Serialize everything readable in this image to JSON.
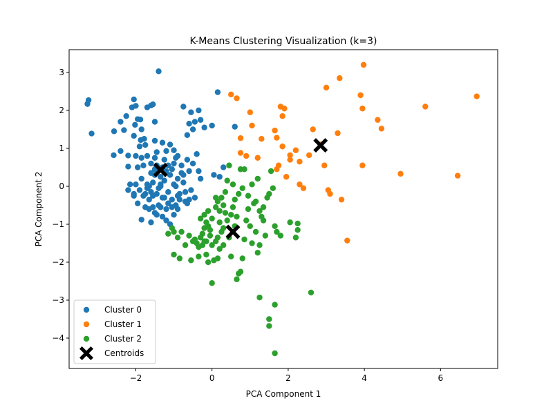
{
  "chart_data": {
    "type": "scatter",
    "title": "K-Means Clustering Visualization (k=3)",
    "xlabel": "PCA Component 1",
    "ylabel": "PCA Component 2",
    "xlim": [
      -3.75,
      7.5
    ],
    "ylim": [
      -4.8,
      3.6
    ],
    "xticks": [
      -2,
      0,
      2,
      4,
      6
    ],
    "yticks": [
      -4,
      -3,
      -2,
      -1,
      0,
      1,
      2,
      3
    ],
    "grid": false,
    "legend_position": "lower-left",
    "series": [
      {
        "name": "Cluster 0",
        "color": "#1f77b4",
        "marker": "circle",
        "points": [
          [
            -3.27,
            2.17
          ],
          [
            -3.24,
            2.27
          ],
          [
            -3.16,
            1.39
          ],
          [
            -2.57,
            1.45
          ],
          [
            -2.58,
            0.82
          ],
          [
            -2.4,
            0.93
          ],
          [
            -2.4,
            1.7
          ],
          [
            -2.31,
            1.48
          ],
          [
            -2.25,
            1.85
          ],
          [
            -2.2,
            0.81
          ],
          [
            -2.2,
            0.52
          ],
          [
            -2.1,
            2.08
          ],
          [
            -2.05,
            2.29
          ],
          [
            -2.0,
            2.12
          ],
          [
            -2.02,
            1.62
          ],
          [
            -2.05,
            1.33
          ],
          [
            -1.95,
            1.77
          ],
          [
            -1.88,
            1.76
          ],
          [
            -1.85,
            1.5
          ],
          [
            -1.87,
            1.22
          ],
          [
            -1.9,
            1.05
          ],
          [
            -1.78,
            1.25
          ],
          [
            -1.75,
            1.09
          ],
          [
            -1.7,
            2.08
          ],
          [
            -1.6,
            2.13
          ],
          [
            -1.55,
            2.16
          ],
          [
            -1.5,
            1.7
          ],
          [
            -1.95,
            0.5
          ],
          [
            -2.0,
            0.8
          ],
          [
            -1.85,
            0.75
          ],
          [
            -1.8,
            0.55
          ],
          [
            -1.7,
            0.8
          ],
          [
            -1.6,
            0.6
          ],
          [
            -1.5,
            0.75
          ],
          [
            -1.45,
            0.9
          ],
          [
            -1.5,
            1.2
          ],
          [
            -1.3,
            1.15
          ],
          [
            -1.2,
            0.93
          ],
          [
            -1.1,
            1.1
          ],
          [
            -1.0,
            0.95
          ],
          [
            -0.9,
            0.8
          ],
          [
            -2.15,
            0.05
          ],
          [
            -2.2,
            -0.1
          ],
          [
            -2.05,
            -0.25
          ],
          [
            -2.0,
            0.05
          ],
          [
            -1.9,
            -0.1
          ],
          [
            -1.8,
            -0.25
          ],
          [
            -1.85,
            0.2
          ],
          [
            -1.7,
            0.05
          ],
          [
            -1.65,
            -0.35
          ],
          [
            -1.6,
            -0.15
          ],
          [
            -1.55,
            0.1
          ],
          [
            -1.5,
            0.3
          ],
          [
            -1.45,
            -0.2
          ],
          [
            -1.4,
            -0.05
          ],
          [
            -1.35,
            -0.55
          ],
          [
            -1.3,
            -0.3
          ],
          [
            -1.25,
            0.15
          ],
          [
            -1.2,
            -0.6
          ],
          [
            -1.15,
            -0.15
          ],
          [
            -1.1,
            0.3
          ],
          [
            -1.05,
            -0.35
          ],
          [
            -1.0,
            0.05
          ],
          [
            -0.95,
            -0.5
          ],
          [
            -0.9,
            0.2
          ],
          [
            -0.85,
            -0.2
          ],
          [
            -0.8,
            0.55
          ],
          [
            -0.75,
            0.3
          ],
          [
            -0.7,
            -0.4
          ],
          [
            -0.65,
            0.7
          ],
          [
            -0.6,
            0.4
          ],
          [
            -0.55,
            -0.1
          ],
          [
            -0.5,
            0.6
          ],
          [
            -0.45,
            -0.3
          ],
          [
            -0.4,
            0.85
          ],
          [
            -0.35,
            0.4
          ],
          [
            -0.3,
            0.2
          ],
          [
            -1.85,
            -0.88
          ],
          [
            -1.75,
            -0.55
          ],
          [
            -1.6,
            -0.95
          ],
          [
            -1.5,
            -0.7
          ],
          [
            -1.4,
            -0.5
          ],
          [
            -1.3,
            -0.8
          ],
          [
            -1.2,
            -0.9
          ],
          [
            -1.1,
            -1.0
          ],
          [
            -1.0,
            -0.75
          ],
          [
            -0.9,
            -0.6
          ],
          [
            -1.4,
            3.03
          ],
          [
            -0.75,
            2.1
          ],
          [
            -0.6,
            1.65
          ],
          [
            -0.55,
            1.95
          ],
          [
            -0.45,
            1.7
          ],
          [
            -0.35,
            2.0
          ],
          [
            -0.3,
            1.75
          ],
          [
            -0.2,
            1.55
          ],
          [
            -0.65,
            1.35
          ],
          [
            -0.5,
            1.5
          ],
          [
            0.15,
            2.48
          ],
          [
            0.0,
            1.6
          ],
          [
            0.05,
            0.3
          ],
          [
            0.2,
            0.25
          ],
          [
            0.3,
            0.5
          ],
          [
            0.6,
            1.57
          ],
          [
            -2.05,
            -0.2
          ],
          [
            -1.95,
            -0.45
          ],
          [
            -1.75,
            -0.2
          ],
          [
            -1.65,
            0.0
          ],
          [
            -1.55,
            -0.55
          ],
          [
            -1.45,
            0.55
          ],
          [
            -1.35,
            0.25
          ],
          [
            -1.25,
            0.7
          ],
          [
            -1.15,
            0.55
          ],
          [
            -1.05,
            0.45
          ],
          [
            -0.95,
            0.0
          ],
          [
            -0.85,
            -0.35
          ],
          [
            -0.75,
            0.1
          ],
          [
            -0.7,
            -0.15
          ],
          [
            -0.65,
            -0.45
          ],
          [
            -0.95,
            0.75
          ],
          [
            -1.15,
            -0.45
          ],
          [
            -1.35,
            0.0
          ],
          [
            -1.55,
            -0.25
          ],
          [
            -1.7,
            -0.05
          ],
          [
            -1.6,
            0.35
          ],
          [
            -1.5,
            0.45
          ],
          [
            -1.3,
            0.5
          ],
          [
            -1.2,
            0.4
          ],
          [
            -1.0,
            0.6
          ],
          [
            -0.8,
            0.35
          ],
          [
            -1.05,
            -0.55
          ],
          [
            -1.25,
            -0.3
          ],
          [
            -1.65,
            -0.6
          ],
          [
            -1.45,
            -0.75
          ],
          [
            -1.35,
            0.05
          ],
          [
            -0.9,
            -0.25
          ],
          [
            -0.6,
            -0.35
          ]
        ]
      },
      {
        "name": "Cluster 1",
        "color": "#ff7f0e",
        "marker": "circle",
        "points": [
          [
            0.5,
            2.42
          ],
          [
            0.65,
            2.32
          ],
          [
            0.75,
            1.27
          ],
          [
            0.75,
            0.88
          ],
          [
            0.9,
            0.8
          ],
          [
            1.0,
            1.95
          ],
          [
            1.05,
            1.6
          ],
          [
            1.2,
            0.75
          ],
          [
            1.3,
            1.25
          ],
          [
            1.65,
            1.47
          ],
          [
            1.7,
            1.28
          ],
          [
            1.7,
            0.45
          ],
          [
            1.75,
            0.55
          ],
          [
            1.8,
            2.1
          ],
          [
            1.85,
            1.85
          ],
          [
            1.9,
            2.05
          ],
          [
            1.85,
            1.05
          ],
          [
            1.95,
            0.25
          ],
          [
            2.05,
            0.82
          ],
          [
            2.05,
            0.7
          ],
          [
            2.2,
            0.95
          ],
          [
            2.3,
            0.65
          ],
          [
            2.3,
            0.05
          ],
          [
            2.4,
            -0.05
          ],
          [
            2.55,
            0.82
          ],
          [
            2.65,
            1.5
          ],
          [
            2.85,
            1.1
          ],
          [
            2.95,
            0.55
          ],
          [
            3.0,
            2.6
          ],
          [
            3.05,
            -0.1
          ],
          [
            3.1,
            -0.2
          ],
          [
            3.3,
            1.4
          ],
          [
            3.35,
            2.85
          ],
          [
            3.4,
            -0.35
          ],
          [
            3.55,
            -1.43
          ],
          [
            3.9,
            2.4
          ],
          [
            3.95,
            2.05
          ],
          [
            3.95,
            0.55
          ],
          [
            3.98,
            3.2
          ],
          [
            4.35,
            1.75
          ],
          [
            4.45,
            1.52
          ],
          [
            4.95,
            0.33
          ],
          [
            5.6,
            2.1
          ],
          [
            6.45,
            0.28
          ],
          [
            6.95,
            2.37
          ]
        ]
      },
      {
        "name": "Cluster 2",
        "color": "#2ca02c",
        "marker": "circle",
        "points": [
          [
            -1.05,
            -1.1
          ],
          [
            -1.0,
            -1.2
          ],
          [
            -1.15,
            -1.25
          ],
          [
            -0.9,
            -1.35
          ],
          [
            -0.8,
            -1.2
          ],
          [
            -0.7,
            -1.55
          ],
          [
            -0.6,
            -1.3
          ],
          [
            -0.5,
            -1.45
          ],
          [
            -0.4,
            -1.5
          ],
          [
            -0.35,
            -1.6
          ],
          [
            -0.3,
            -1.35
          ],
          [
            -0.25,
            -1.25
          ],
          [
            -0.2,
            -1.1
          ],
          [
            -0.15,
            -0.95
          ],
          [
            -0.1,
            -1.05
          ],
          [
            -0.05,
            -1.3
          ],
          [
            0.0,
            -1.55
          ],
          [
            0.1,
            -1.45
          ],
          [
            0.15,
            -1.35
          ],
          [
            0.2,
            -1.65
          ],
          [
            0.25,
            -1.2
          ],
          [
            -0.3,
            -0.85
          ],
          [
            -0.2,
            -0.75
          ],
          [
            -0.1,
            -0.65
          ],
          [
            0.0,
            -0.85
          ],
          [
            0.1,
            -0.55
          ],
          [
            0.15,
            -0.4
          ],
          [
            0.2,
            -0.65
          ],
          [
            0.25,
            -0.3
          ],
          [
            0.3,
            -0.5
          ],
          [
            0.35,
            -0.15
          ],
          [
            0.4,
            0.15
          ],
          [
            0.45,
            0.55
          ],
          [
            0.5,
            -0.75
          ],
          [
            0.55,
            -0.55
          ],
          [
            0.6,
            -0.35
          ],
          [
            0.65,
            -0.8
          ],
          [
            0.7,
            -0.2
          ],
          [
            0.75,
            0.45
          ],
          [
            0.8,
            -0.05
          ],
          [
            0.85,
            0.45
          ],
          [
            0.9,
            -0.9
          ],
          [
            0.95,
            -0.25
          ],
          [
            1.0,
            -1.05
          ],
          [
            1.05,
            0.05
          ],
          [
            1.1,
            -0.45
          ],
          [
            1.15,
            -1.2
          ],
          [
            1.2,
            0.2
          ],
          [
            1.25,
            -0.65
          ],
          [
            1.3,
            -0.8
          ],
          [
            1.35,
            -0.55
          ],
          [
            1.4,
            -1.3
          ],
          [
            1.45,
            -0.3
          ],
          [
            1.5,
            -0.2
          ],
          [
            1.55,
            0.4
          ],
          [
            1.6,
            -0.05
          ],
          [
            1.65,
            -1.05
          ],
          [
            1.7,
            -1.2
          ],
          [
            1.8,
            -1.3
          ],
          [
            2.05,
            -0.95
          ],
          [
            2.2,
            -1.35
          ],
          [
            2.25,
            -1.15
          ],
          [
            2.25,
            -0.98
          ],
          [
            -1.0,
            -1.8
          ],
          [
            -0.85,
            -1.9
          ],
          [
            -0.55,
            -1.95
          ],
          [
            -0.35,
            -1.85
          ],
          [
            -0.15,
            -1.8
          ],
          [
            -0.1,
            -2.0
          ],
          [
            0.05,
            -1.95
          ],
          [
            0.15,
            -1.9
          ],
          [
            0.5,
            -1.85
          ],
          [
            0.65,
            -2.45
          ],
          [
            0.7,
            -2.3
          ],
          [
            0.75,
            -2.25
          ],
          [
            0.8,
            -1.9
          ],
          [
            1.2,
            -1.75
          ],
          [
            1.25,
            -1.55
          ],
          [
            0.0,
            -2.55
          ],
          [
            1.25,
            -2.93
          ],
          [
            1.5,
            -3.5
          ],
          [
            1.5,
            -3.68
          ],
          [
            1.65,
            -3.12
          ],
          [
            1.65,
            -4.4
          ],
          [
            2.6,
            -2.8
          ],
          [
            -0.45,
            -1.4
          ],
          [
            -0.25,
            -1.55
          ],
          [
            -0.15,
            -1.45
          ],
          [
            0.3,
            -1.1
          ],
          [
            0.4,
            -0.9
          ],
          [
            0.45,
            -1.35
          ],
          [
            0.35,
            -0.7
          ],
          [
            0.2,
            -0.95
          ],
          [
            -0.05,
            -1.15
          ],
          [
            1.05,
            -1.5
          ],
          [
            0.85,
            -1.4
          ],
          [
            1.15,
            -0.4
          ],
          [
            1.35,
            -0.9
          ],
          [
            0.55,
            0.05
          ],
          [
            0.95,
            -0.6
          ],
          [
            0.6,
            -1.05
          ],
          [
            0.3,
            -1.55
          ],
          [
            0.1,
            -0.3
          ],
          [
            -0.2,
            -1.45
          ]
        ]
      }
    ],
    "centroids": {
      "name": "Centroids",
      "color": "#000000",
      "marker": "X",
      "points": [
        [
          -1.35,
          0.43
        ],
        [
          0.55,
          -1.2
        ],
        [
          2.85,
          1.08
        ]
      ]
    }
  }
}
